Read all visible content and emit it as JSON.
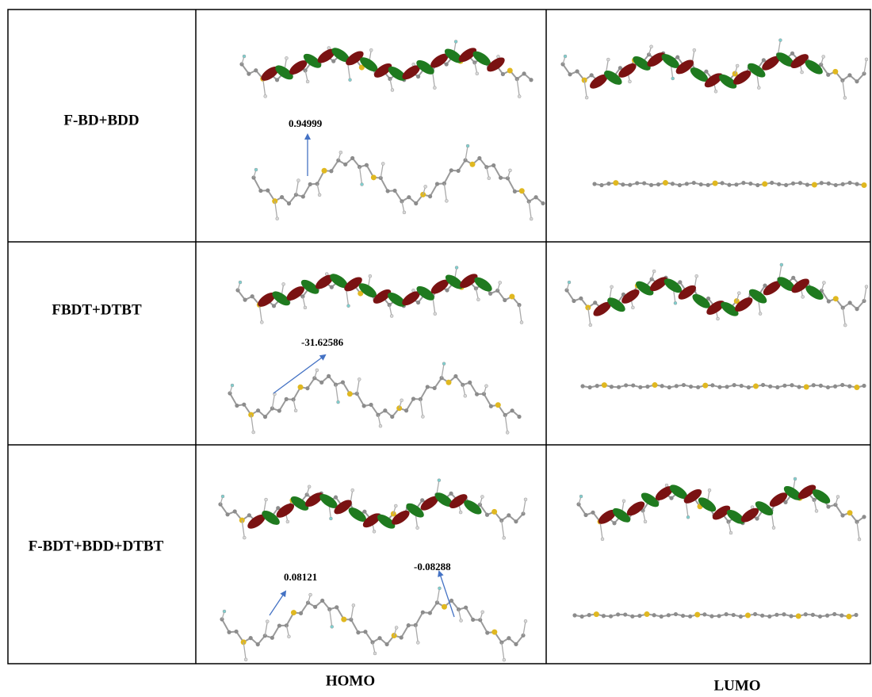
{
  "table": {
    "rows": [
      {
        "label": "F-BD+BDD",
        "annotations": [
          "0.94999"
        ]
      },
      {
        "label": "FBDT+DTBT",
        "annotations": [
          "-31.62586"
        ]
      },
      {
        "label": "F-BDT+BDD+DTBT",
        "annotations": [
          "0.08121",
          "-0.08288"
        ]
      }
    ]
  },
  "footer": {
    "columns": [
      "HOMO",
      "LUMO"
    ]
  }
}
